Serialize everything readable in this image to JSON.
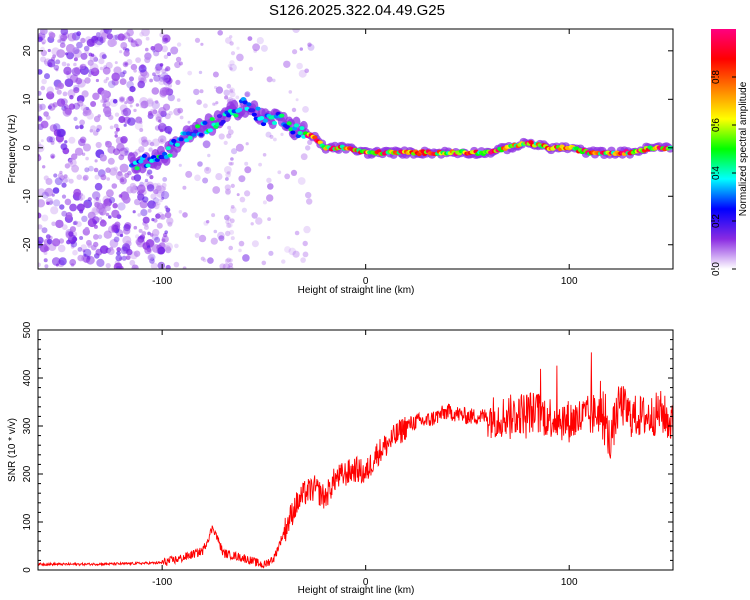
{
  "figure_title": "S126.2025.322.04.49.G25",
  "chart_data": [
    {
      "type": "heatmap",
      "panel": "spectrogram",
      "title": "S126.2025.322.04.49.G25",
      "xlabel": "Height of straight line (km)",
      "ylabel": "Frequency (Hz)",
      "xlim": [
        -161,
        151
      ],
      "ylim": [
        -25,
        24.5
      ],
      "xticks": [
        -100,
        0,
        100
      ],
      "yticks": [
        -20,
        -10,
        0,
        10,
        20
      ],
      "colorbar": {
        "label": "Normalized spectral amplitude",
        "range": [
          0.0,
          1.0
        ],
        "ticks": [
          "0.0",
          "0.2",
          "0.4",
          "0.6",
          "0.8"
        ],
        "colormap": [
          "#ffffff",
          "#8a2be2",
          "#0000ff",
          "#00ffff",
          "#00ff00",
          "#ffff00",
          "#ff8000",
          "#ff0000",
          "#ff0080"
        ]
      },
      "ridge": {
        "x": [
          -110,
          -100,
          -90,
          -80,
          -70,
          -60,
          -50,
          -40,
          -35,
          -30,
          -25,
          -20,
          -10,
          0,
          20,
          40,
          60,
          70,
          80,
          90,
          100,
          110,
          120,
          130,
          140,
          150
        ],
        "y": [
          -3,
          -2,
          2,
          4,
          6,
          9,
          6,
          6,
          4,
          3,
          2,
          0,
          0,
          -1,
          -1,
          -1,
          -1,
          0,
          1,
          0,
          0,
          -1,
          -1,
          -1,
          0,
          0
        ]
      }
    },
    {
      "type": "line",
      "panel": "snr",
      "xlabel": "Height of straight line (km)",
      "ylabel": "SNR (10 * v/v)",
      "xlim": [
        -161,
        151
      ],
      "ylim": [
        0,
        500
      ],
      "xticks": [
        -100,
        0,
        100
      ],
      "yticks": [
        0,
        100,
        200,
        300,
        400,
        500
      ],
      "color": "#ff0000",
      "series": [
        {
          "name": "SNR",
          "x": [
            -161,
            -140,
            -120,
            -100,
            -90,
            -80,
            -75,
            -70,
            -60,
            -50,
            -45,
            -40,
            -35,
            -30,
            -25,
            -20,
            -15,
            -10,
            -5,
            0,
            5,
            10,
            15,
            20,
            25,
            30,
            40,
            50,
            60,
            70,
            80,
            90,
            100,
            110,
            115,
            120,
            125,
            130,
            140,
            145,
            151
          ],
          "y": [
            12,
            12,
            13,
            15,
            25,
            40,
            90,
            35,
            25,
            10,
            25,
            80,
            130,
            160,
            170,
            150,
            190,
            200,
            210,
            200,
            240,
            260,
            280,
            300,
            310,
            310,
            330,
            320,
            320,
            320,
            330,
            320,
            310,
            320,
            330,
            270,
            350,
            320,
            320,
            330,
            300
          ]
        }
      ]
    }
  ]
}
